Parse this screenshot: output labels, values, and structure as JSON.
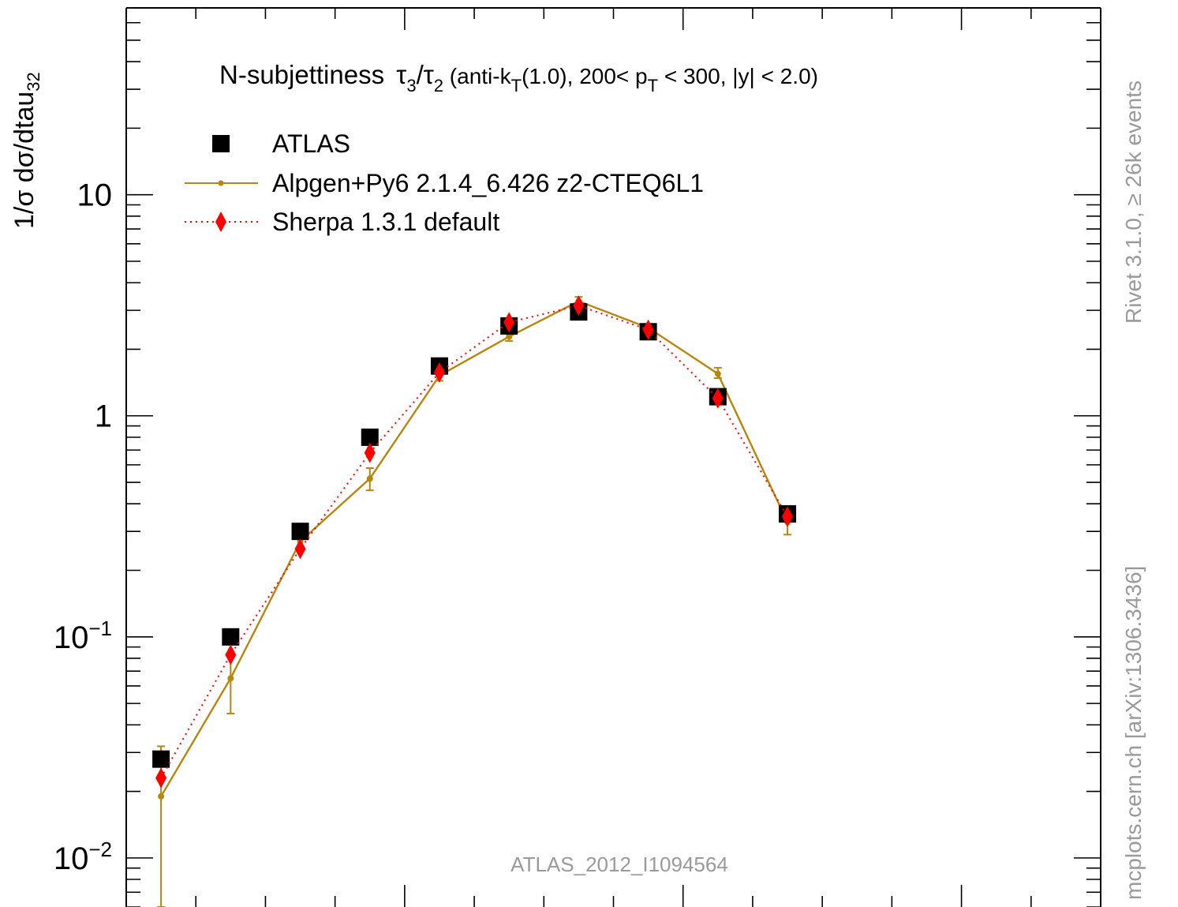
{
  "chart_data": {
    "type": "line",
    "title": {
      "main": "N-subjettiness",
      "tau": "τ",
      "sub3": "3",
      "slash": "/",
      "sub2": "2",
      "details_a": " (anti-k",
      "sub_t1": "T",
      "details_b": "(1.0), 200< p",
      "sub_t2": "T",
      "details_c": " < 300, |y| < 2.0)"
    },
    "ylabel": {
      "main": "1/σ dσ/dtau",
      "sub": "32"
    },
    "xlabel": "",
    "yscale": "log",
    "ylim": [
      0.006,
      70
    ],
    "xlim": [
      0.0,
      0.7
    ],
    "y_ticks": [
      {
        "value": 10,
        "base": "10",
        "exp": ""
      },
      {
        "value": 1,
        "base": "1",
        "exp": ""
      },
      {
        "value": 0.1,
        "base": "10",
        "exp": "−1"
      },
      {
        "value": 0.01,
        "base": "10",
        "exp": "−2"
      }
    ],
    "x": [
      0.025,
      0.075,
      0.125,
      0.175,
      0.225,
      0.275,
      0.325,
      0.375,
      0.425,
      0.475
    ],
    "series": [
      {
        "name": "ATLAS",
        "style": "square-marker",
        "color": "#000000",
        "values": [
          0.028,
          0.1,
          0.3,
          0.8,
          1.68,
          2.55,
          2.95,
          2.4,
          1.22,
          0.36
        ]
      },
      {
        "name": "Alpgen+Py6 2.1.4_6.426 z2-CTEQ6L1",
        "style": "solid-line",
        "color": "#b8860b",
        "values": [
          0.019,
          0.065,
          0.27,
          0.52,
          1.52,
          2.28,
          3.3,
          2.5,
          1.55,
          0.33
        ],
        "err_low": [
          0.006,
          0.045,
          0.245,
          0.46,
          1.44,
          2.18,
          3.15,
          2.42,
          1.48,
          0.29
        ],
        "err_high": [
          0.032,
          0.085,
          0.32,
          0.58,
          1.6,
          2.38,
          3.45,
          2.58,
          1.65,
          0.37
        ]
      },
      {
        "name": "Sherpa 1.3.1 default",
        "style": "dotted-line-diamond",
        "color": "#ff0000",
        "values": [
          0.023,
          0.083,
          0.25,
          0.68,
          1.57,
          2.65,
          3.15,
          2.45,
          1.2,
          0.35
        ]
      }
    ],
    "legend_placement": "top-left",
    "grid": false,
    "watermark": "ATLAS_2012_I1094564",
    "side_label_right_top": "Rivet 3.1.0, ≥ 26k events",
    "side_label_right_bottom": "mcplots.cern.ch [arXiv:1306.3436]"
  }
}
